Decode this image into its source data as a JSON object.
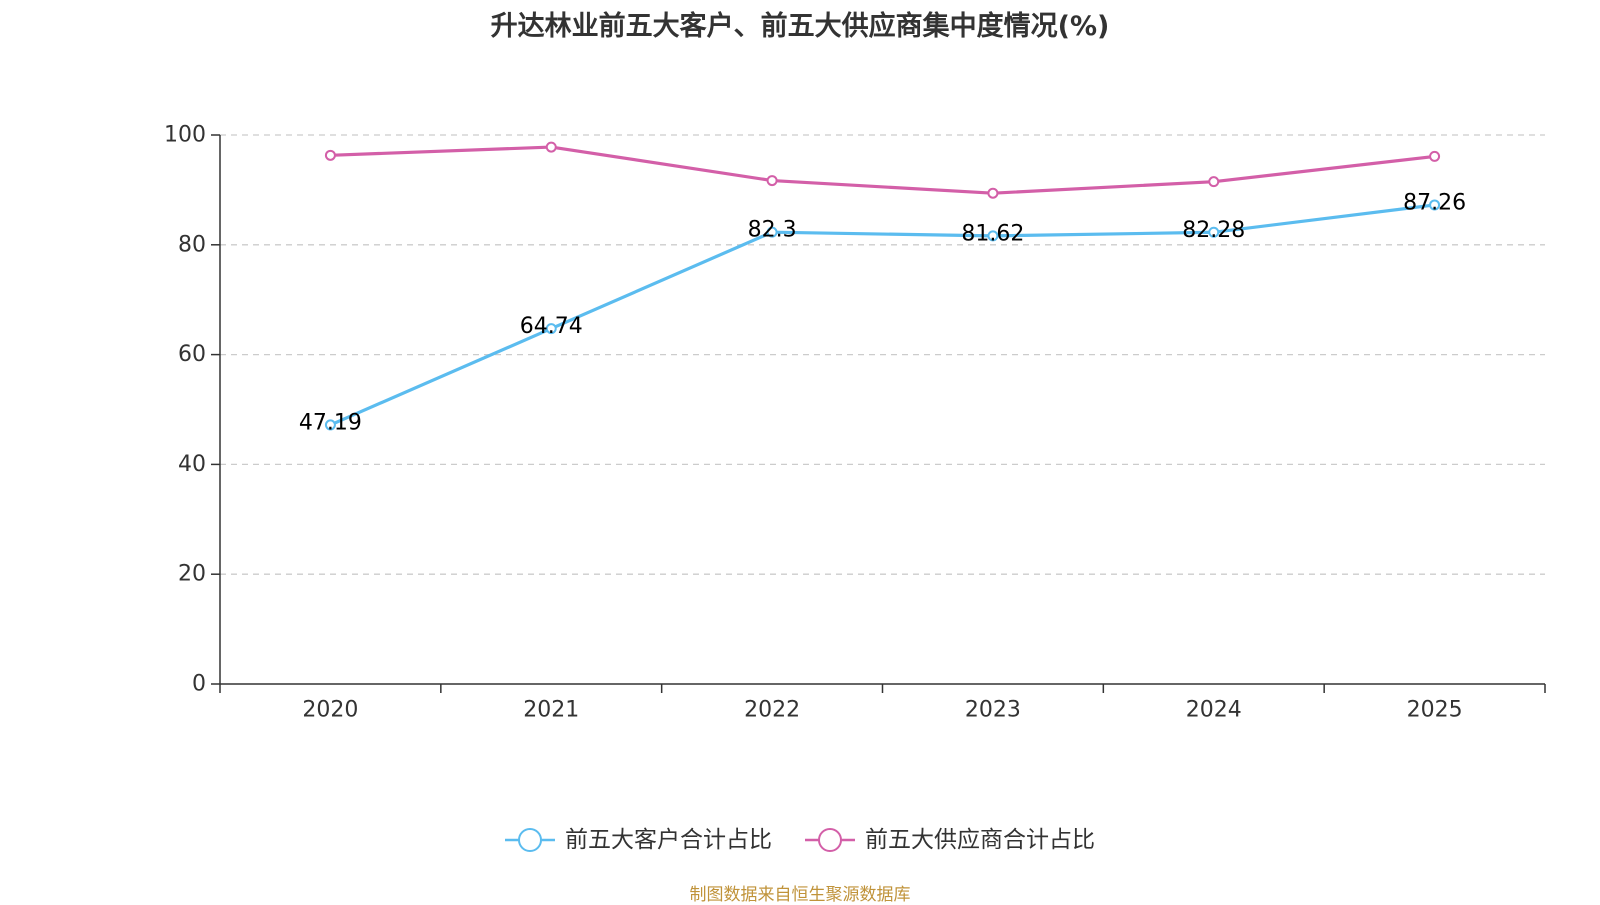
{
  "chart_data": {
    "type": "line",
    "title": "升达林业前五大客户、前五大供应商集中度情况(%)",
    "categories": [
      "2020",
      "2021",
      "2022",
      "2023",
      "2024",
      "2025"
    ],
    "ylim": [
      0,
      100
    ],
    "yticks": [
      0,
      20,
      40,
      60,
      80,
      100
    ],
    "grid": true,
    "legend_position": "bottom-center",
    "series": [
      {
        "name": "前五大客户合计占比",
        "color": "#5bbcef",
        "values": [
          47.19,
          64.74,
          82.3,
          81.62,
          82.28,
          87.26
        ],
        "labels": [
          "47.19",
          "64.74",
          "82.3",
          "81.62",
          "82.28",
          "87.26"
        ],
        "show_labels": true
      },
      {
        "name": "前五大供应商合计占比",
        "color": "#d35fa8",
        "values": [
          96.3,
          97.8,
          91.7,
          89.4,
          91.5,
          96.1
        ],
        "show_labels": false
      }
    ]
  },
  "footer": {
    "source": "制图数据来自恒生聚源数据库"
  }
}
